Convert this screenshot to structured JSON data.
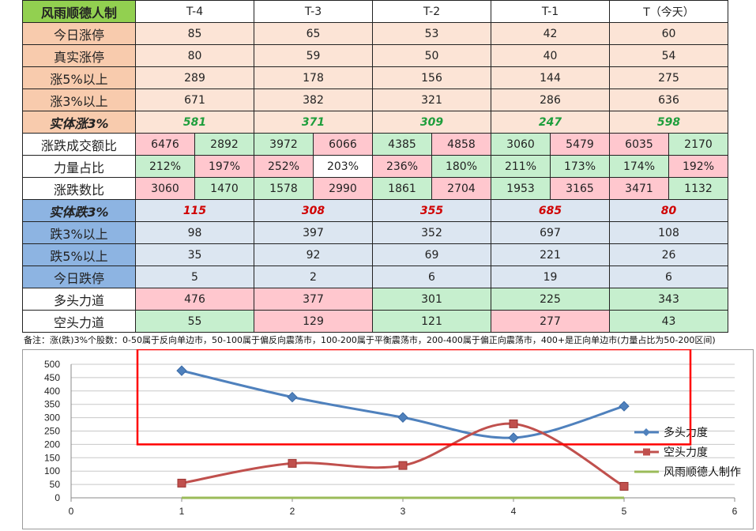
{
  "table": {
    "title": "风雨顺德人制",
    "headers": [
      "T-4",
      "T-3",
      "T-2",
      "T-1",
      "T（今天）"
    ],
    "rows_up": [
      {
        "label": "今日涨停",
        "values": [
          "85",
          "65",
          "53",
          "42",
          "60"
        ]
      },
      {
        "label": "真实涨停",
        "values": [
          "80",
          "59",
          "50",
          "40",
          "54"
        ]
      },
      {
        "label": "涨5%以上",
        "values": [
          "289",
          "178",
          "156",
          "144",
          "275"
        ]
      },
      {
        "label": "涨3%以上",
        "values": [
          "671",
          "382",
          "321",
          "286",
          "636"
        ]
      }
    ],
    "solid_up": {
      "label": "实体涨3%",
      "values": [
        "581",
        "371",
        "309",
        "247",
        "598"
      ]
    },
    "pair_rows": [
      {
        "label": "涨跌成交额比",
        "values": [
          "6476",
          "2892",
          "3972",
          "6066",
          "4385",
          "4858",
          "3060",
          "5479",
          "6035",
          "2170"
        ]
      },
      {
        "label": "力量占比",
        "values": [
          "212%",
          "197%",
          "252%",
          "203%",
          "236%",
          "180%",
          "211%",
          "173%",
          "174%",
          "192%"
        ]
      },
      {
        "label": "涨跌数比",
        "values": [
          "3060",
          "1470",
          "1578",
          "2990",
          "1861",
          "2704",
          "1953",
          "3165",
          "3471",
          "1132"
        ]
      }
    ],
    "solid_down": {
      "label": "实体跌3%",
      "values": [
        "115",
        "308",
        "355",
        "685",
        "80"
      ]
    },
    "rows_down": [
      {
        "label": "跌3%以上",
        "values": [
          "98",
          "397",
          "352",
          "697",
          "108"
        ]
      },
      {
        "label": "跌5%以上",
        "values": [
          "35",
          "92",
          "69",
          "221",
          "26"
        ]
      },
      {
        "label": "今日跌停",
        "values": [
          "5",
          "2",
          "6",
          "19",
          "6"
        ]
      }
    ],
    "force_rows": [
      {
        "label": "多头力道",
        "values": [
          "476",
          "377",
          "301",
          "225",
          "343"
        ]
      },
      {
        "label": "空头力道",
        "values": [
          "55",
          "129",
          "121",
          "277",
          "43"
        ]
      }
    ]
  },
  "note": "备注：涨(跌)3%个股数：0-50属于反向单边市，50-100属于偏反向震荡市，100-200属于平衡震荡市，200-400属于偏正向震荡市，400+是正向单边市(力量占比为50-200区间)",
  "colors": {
    "long": "#4f81bd",
    "short": "#c0504d",
    "maker": "#9bbb59",
    "highlight": "#ff0000"
  },
  "chart_data": {
    "type": "line",
    "x": [
      1,
      2,
      3,
      4,
      5
    ],
    "series": [
      {
        "name": "多头力度",
        "values": [
          476,
          377,
          301,
          225,
          343
        ],
        "color": "#4f81bd",
        "marker": "diamond"
      },
      {
        "name": "空头力度",
        "values": [
          55,
          129,
          121,
          277,
          43
        ],
        "color": "#c0504d",
        "marker": "square"
      },
      {
        "name": "风雨顺德人制作",
        "values": [
          0,
          0,
          0,
          0,
          0
        ],
        "color": "#9bbb59",
        "marker": "none"
      }
    ],
    "xlim": [
      0,
      6
    ],
    "ylim": [
      0,
      500
    ],
    "x_ticks": [
      "0",
      "1",
      "2",
      "3",
      "4",
      "5",
      "6"
    ],
    "y_ticks": [
      "0",
      "50",
      "100",
      "150",
      "200",
      "250",
      "300",
      "350",
      "400",
      "450",
      "500"
    ],
    "grid": true,
    "legend": "right",
    "highlight_box": {
      "y_from": 200,
      "y_to": 500,
      "x_from": 0.6,
      "x_to": 5.6
    }
  }
}
